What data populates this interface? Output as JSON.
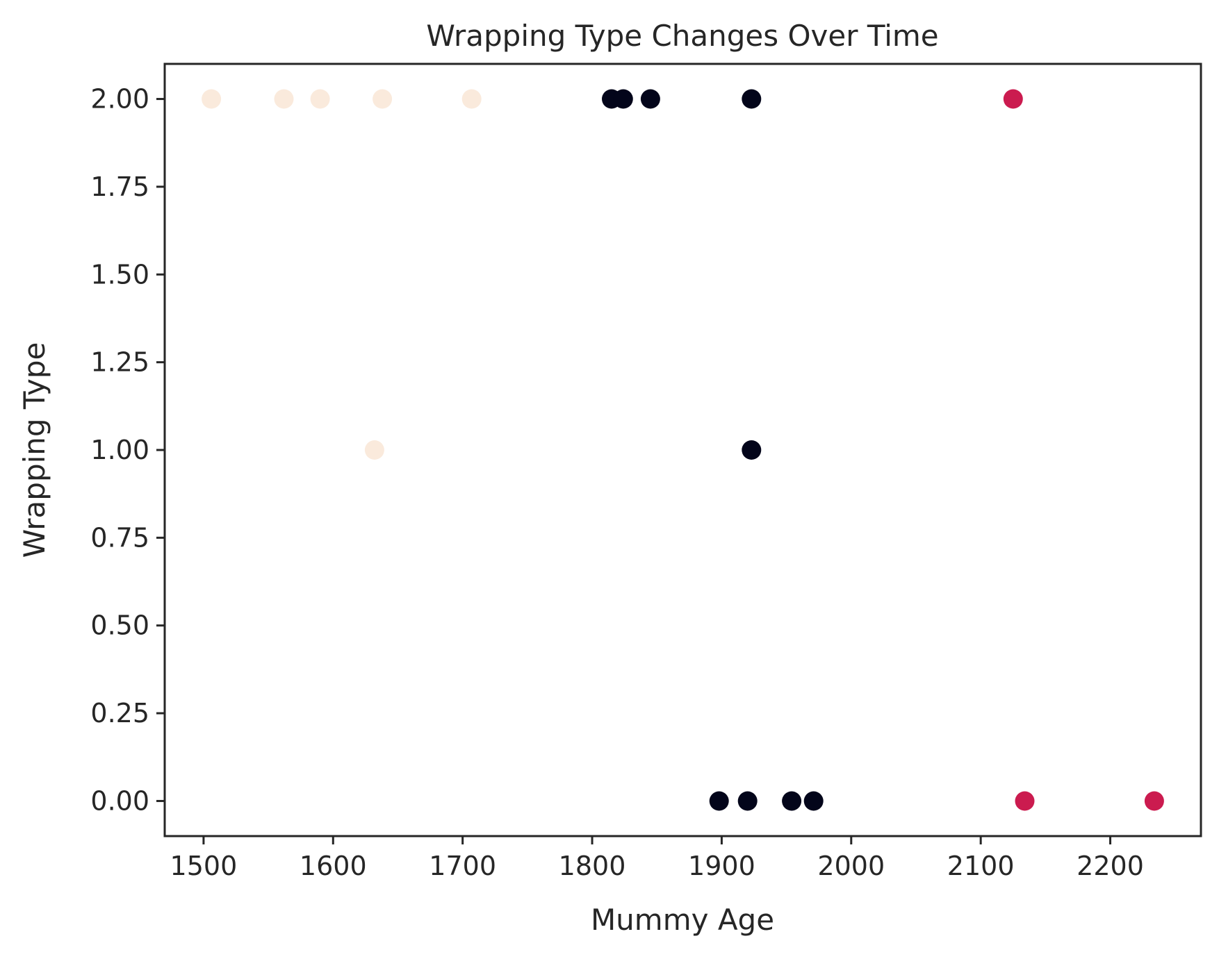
{
  "chart_data": {
    "type": "scatter",
    "title": "Wrapping Type Changes Over Time",
    "xlabel": "Mummy Age",
    "ylabel": "Wrapping Type",
    "xlim": [
      1470,
      2270
    ],
    "ylim": [
      -0.1,
      2.1
    ],
    "xticks": [
      1500,
      1600,
      1700,
      1800,
      1900,
      2000,
      2100,
      2200
    ],
    "xtick_labels": [
      "1500",
      "1600",
      "1700",
      "1800",
      "1900",
      "2000",
      "2100",
      "2200"
    ],
    "yticks": [
      0,
      0.25,
      0.5,
      0.75,
      1,
      1.25,
      1.5,
      1.75,
      2
    ],
    "ytick_labels": [
      "0.00",
      "0.25",
      "0.50",
      "0.75",
      "1.00",
      "1.25",
      "1.50",
      "1.75",
      "2.00"
    ],
    "grid": false,
    "points": [
      {
        "x": 1506,
        "y": 2,
        "color": "#faeadc"
      },
      {
        "x": 1562,
        "y": 2,
        "color": "#faeadc"
      },
      {
        "x": 1590,
        "y": 2,
        "color": "#faeadc"
      },
      {
        "x": 1638,
        "y": 2,
        "color": "#faeadc"
      },
      {
        "x": 1707,
        "y": 2,
        "color": "#faeadc"
      },
      {
        "x": 1632,
        "y": 1,
        "color": "#faeadc"
      },
      {
        "x": 1815,
        "y": 2,
        "color": "#03051a"
      },
      {
        "x": 1824,
        "y": 2,
        "color": "#03051a"
      },
      {
        "x": 1845,
        "y": 2,
        "color": "#03051a"
      },
      {
        "x": 1923,
        "y": 2,
        "color": "#03051a"
      },
      {
        "x": 1923,
        "y": 1,
        "color": "#03051a"
      },
      {
        "x": 1898,
        "y": 0,
        "color": "#03051a"
      },
      {
        "x": 1920,
        "y": 0,
        "color": "#03051a"
      },
      {
        "x": 1954,
        "y": 0,
        "color": "#03051a"
      },
      {
        "x": 1971,
        "y": 0,
        "color": "#03051a"
      },
      {
        "x": 2125,
        "y": 2,
        "color": "#cb1b4f"
      },
      {
        "x": 2134,
        "y": 0,
        "color": "#cb1b4f"
      },
      {
        "x": 2234,
        "y": 0,
        "color": "#cb1b4f"
      }
    ]
  }
}
